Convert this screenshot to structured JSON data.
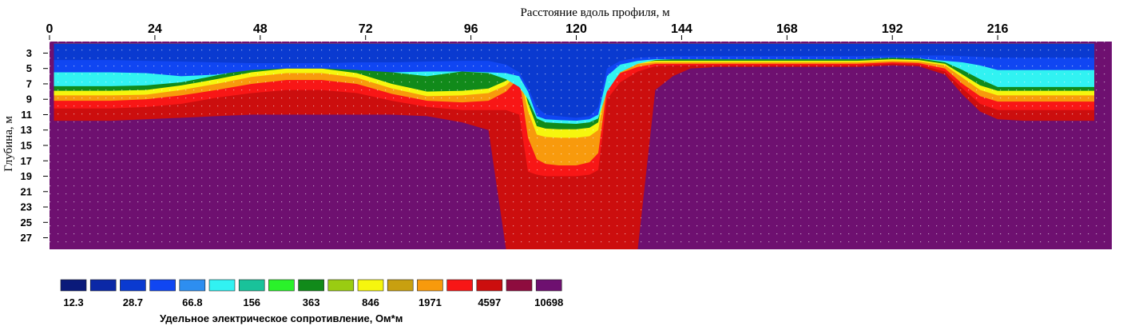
{
  "chart_data": {
    "type": "heatmap",
    "xlabel": "Расстояние вдоль профиля, м",
    "ylabel": "Глубина, м",
    "xlim": [
      0,
      242
    ],
    "ylim": [
      1.5,
      28.5
    ],
    "x_ticks": [
      "0",
      "24",
      "48",
      "72",
      "96",
      "120",
      "144",
      "168",
      "192",
      "216"
    ],
    "y_ticks": [
      "3",
      "5",
      "7",
      "9",
      "11",
      "13",
      "15",
      "17",
      "19",
      "21",
      "23",
      "25",
      "27"
    ],
    "legend": {
      "title": "Удельное электрическое сопротивление, Ом*м",
      "placement": "bottom-left",
      "colors": [
        "#0a1a7a",
        "#0b28a6",
        "#0a3ad0",
        "#1046f2",
        "#2d8ef0",
        "#31f2f2",
        "#19c29a",
        "#2af22a",
        "#118a1a",
        "#9acc12",
        "#f6f60e",
        "#c8a010",
        "#f89a0c",
        "#f81616",
        "#cc0e0e",
        "#8e0c3e",
        "#6e1070"
      ],
      "labels": [
        "12.3",
        "28.7",
        "66.8",
        "156",
        "363",
        "846",
        "1971",
        "4597",
        "10698"
      ]
    },
    "boundaries": {
      "x": [
        1,
        7,
        14,
        22,
        30,
        38,
        46,
        54,
        62,
        70,
        78,
        86,
        94,
        100,
        104,
        107,
        109,
        111,
        113,
        116,
        120,
        123,
        125,
        127,
        130,
        134,
        138,
        142,
        146,
        152,
        160,
        168,
        176,
        184,
        192,
        198,
        204,
        208,
        212,
        216,
        222,
        228,
        233,
        238
      ],
      "top": [
        1.8,
        1.8,
        1.8,
        1.8,
        1.8,
        1.8,
        1.8,
        1.8,
        1.8,
        1.8,
        1.8,
        1.8,
        1.8,
        1.8,
        1.8,
        1.8,
        1.8,
        1.8,
        1.8,
        1.8,
        1.8,
        1.8,
        1.8,
        1.8,
        1.8,
        1.8,
        1.8,
        1.8,
        1.8,
        1.8,
        1.8,
        1.8,
        1.8,
        1.8,
        1.8,
        1.8,
        1.8,
        1.8,
        1.8,
        1.8,
        1.8,
        1.8,
        1.8,
        1.8
      ],
      "deepblue": [
        3.9,
        3.9,
        3.9,
        4.0,
        4.1,
        4.2,
        4.3,
        4.3,
        4.3,
        4.2,
        4.2,
        4.1,
        4.0,
        4.0,
        4.5,
        5.5,
        7.5,
        10.0,
        11.0,
        11.2,
        11.4,
        11.2,
        10.0,
        5.0,
        4.0,
        3.6,
        3.5,
        3.4,
        3.4,
        3.4,
        3.4,
        3.4,
        3.4,
        3.4,
        3.3,
        3.3,
        3.3,
        3.4,
        3.5,
        3.6,
        3.6,
        3.6,
        3.6,
        3.6
      ],
      "midblue": [
        5.5,
        5.5,
        5.5,
        5.6,
        6.0,
        5.8,
        5.2,
        5.0,
        5.0,
        5.2,
        5.5,
        5.4,
        5.4,
        5.5,
        5.6,
        6.0,
        8.0,
        11.2,
        11.6,
        11.7,
        11.8,
        11.6,
        11.0,
        6.0,
        4.5,
        4.0,
        3.8,
        3.8,
        3.8,
        3.8,
        3.8,
        3.8,
        3.8,
        3.8,
        3.6,
        3.7,
        4.0,
        4.2,
        4.6,
        5.2,
        5.2,
        5.2,
        5.2,
        5.2
      ],
      "cyan": [
        7.3,
        7.3,
        7.3,
        7.2,
        6.8,
        5.9,
        5.0,
        4.6,
        4.6,
        4.8,
        5.5,
        6.0,
        5.4,
        5.6,
        6.4,
        7.4,
        9.0,
        11.5,
        12.0,
        12.1,
        12.2,
        12.0,
        11.5,
        8.0,
        5.5,
        4.4,
        3.9,
        3.8,
        3.8,
        3.8,
        3.8,
        3.8,
        3.8,
        3.8,
        3.6,
        3.7,
        4.2,
        5.2,
        6.4,
        7.4,
        7.4,
        7.4,
        7.4,
        7.4
      ],
      "green": [
        7.9,
        7.9,
        7.9,
        7.8,
        7.2,
        6.4,
        5.5,
        5.0,
        5.0,
        5.6,
        7.0,
        8.0,
        7.9,
        7.6,
        6.6,
        5.4,
        9.5,
        12.5,
        12.8,
        12.9,
        12.9,
        12.7,
        12.0,
        6.0,
        4.4,
        4.2,
        4.0,
        4.0,
        4.0,
        4.0,
        4.0,
        4.0,
        4.0,
        4.0,
        3.8,
        3.9,
        4.4,
        5.8,
        7.2,
        7.9,
        7.9,
        7.9,
        7.9,
        7.9
      ],
      "yellow": [
        8.5,
        8.5,
        8.5,
        8.4,
        7.8,
        7.0,
        6.1,
        5.6,
        5.6,
        6.2,
        7.6,
        8.6,
        8.5,
        8.2,
        7.2,
        5.6,
        10.5,
        13.6,
        13.9,
        14.0,
        14.0,
        13.8,
        13.0,
        6.6,
        4.8,
        4.4,
        4.2,
        4.2,
        4.2,
        4.2,
        4.2,
        4.2,
        4.2,
        4.2,
        4.0,
        4.1,
        4.6,
        6.2,
        7.8,
        8.5,
        8.5,
        8.5,
        8.5,
        8.5
      ],
      "orange": [
        9.2,
        9.2,
        9.2,
        9.0,
        8.5,
        7.8,
        7.0,
        6.5,
        6.5,
        7.0,
        8.3,
        9.2,
        9.4,
        9.2,
        8.0,
        6.2,
        14.0,
        16.8,
        17.4,
        17.6,
        17.6,
        17.2,
        16.0,
        7.6,
        5.6,
        4.8,
        4.4,
        4.4,
        4.4,
        4.4,
        4.4,
        4.4,
        4.4,
        4.4,
        4.2,
        4.3,
        5.0,
        7.0,
        8.6,
        9.3,
        9.3,
        9.3,
        9.3,
        9.3
      ],
      "red": [
        10.2,
        10.2,
        10.2,
        10.0,
        9.6,
        8.8,
        8.2,
        7.8,
        7.8,
        8.2,
        9.2,
        10.0,
        10.4,
        10.4,
        10.4,
        11.0,
        18.4,
        18.8,
        19.0,
        19.0,
        19.0,
        18.8,
        18.2,
        9.0,
        6.8,
        5.4,
        4.7,
        4.6,
        4.6,
        4.6,
        4.6,
        4.6,
        4.6,
        4.6,
        4.4,
        4.5,
        5.4,
        7.6,
        9.6,
        10.4,
        10.4,
        10.4,
        10.4,
        10.4
      ],
      "darkred": [
        11.8,
        11.8,
        11.8,
        11.6,
        11.4,
        11.2,
        11.0,
        11.0,
        11.0,
        11.0,
        11.0,
        11.2,
        12.0,
        13.0,
        28.5,
        28.5,
        28.5,
        28.5,
        28.5,
        28.5,
        28.5,
        28.5,
        28.5,
        28.5,
        28.5,
        28.5,
        7.8,
        6.0,
        5.0,
        4.8,
        4.8,
        4.8,
        4.8,
        4.8,
        4.6,
        4.7,
        5.8,
        8.4,
        10.6,
        11.6,
        11.8,
        11.8,
        11.8,
        11.8
      ]
    }
  }
}
